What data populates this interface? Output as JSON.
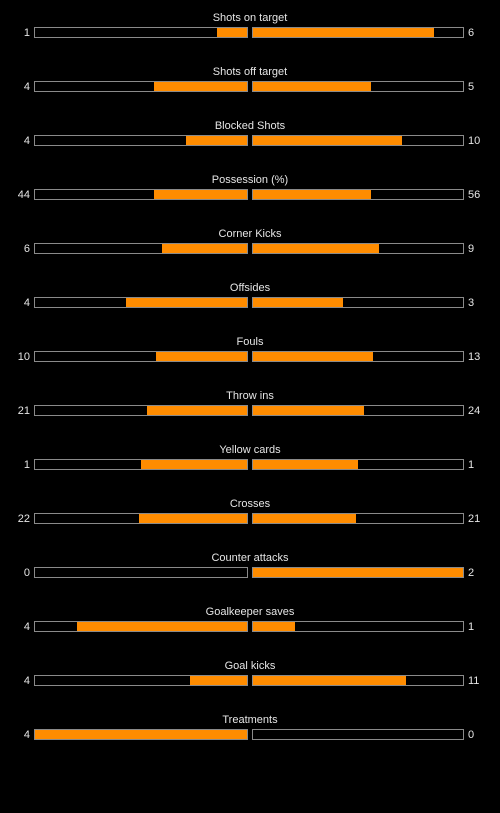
{
  "colors": {
    "background": "#000000",
    "fill": "#ff8c00",
    "border": "#8a8a8a",
    "text": "#e6e6e6"
  },
  "stats": [
    {
      "label": "Shots on target",
      "home": "1",
      "away": "6",
      "home_fill": 0.14,
      "away_fill": 0.86
    },
    {
      "label": "Shots off target",
      "home": "4",
      "away": "5",
      "home_fill": 0.44,
      "away_fill": 0.56
    },
    {
      "label": "Blocked Shots",
      "home": "4",
      "away": "10",
      "home_fill": 0.29,
      "away_fill": 0.71
    },
    {
      "label": "Possession (%)",
      "home": "44",
      "away": "56",
      "home_fill": 0.44,
      "away_fill": 0.56
    },
    {
      "label": "Corner Kicks",
      "home": "6",
      "away": "9",
      "home_fill": 0.4,
      "away_fill": 0.6
    },
    {
      "label": "Offsides",
      "home": "4",
      "away": "3",
      "home_fill": 0.57,
      "away_fill": 0.43
    },
    {
      "label": "Fouls",
      "home": "10",
      "away": "13",
      "home_fill": 0.43,
      "away_fill": 0.57
    },
    {
      "label": "Throw ins",
      "home": "21",
      "away": "24",
      "home_fill": 0.47,
      "away_fill": 0.53
    },
    {
      "label": "Yellow cards",
      "home": "1",
      "away": "1",
      "home_fill": 0.5,
      "away_fill": 0.5
    },
    {
      "label": "Crosses",
      "home": "22",
      "away": "21",
      "home_fill": 0.51,
      "away_fill": 0.49
    },
    {
      "label": "Counter attacks",
      "home": "0",
      "away": "2",
      "home_fill": 0.0,
      "away_fill": 1.0
    },
    {
      "label": "Goalkeeper saves",
      "home": "4",
      "away": "1",
      "home_fill": 0.8,
      "away_fill": 0.2
    },
    {
      "label": "Goal kicks",
      "home": "4",
      "away": "11",
      "home_fill": 0.27,
      "away_fill": 0.73
    },
    {
      "label": "Treatments",
      "home": "4",
      "away": "0",
      "home_fill": 1.0,
      "away_fill": 0.0
    }
  ]
}
